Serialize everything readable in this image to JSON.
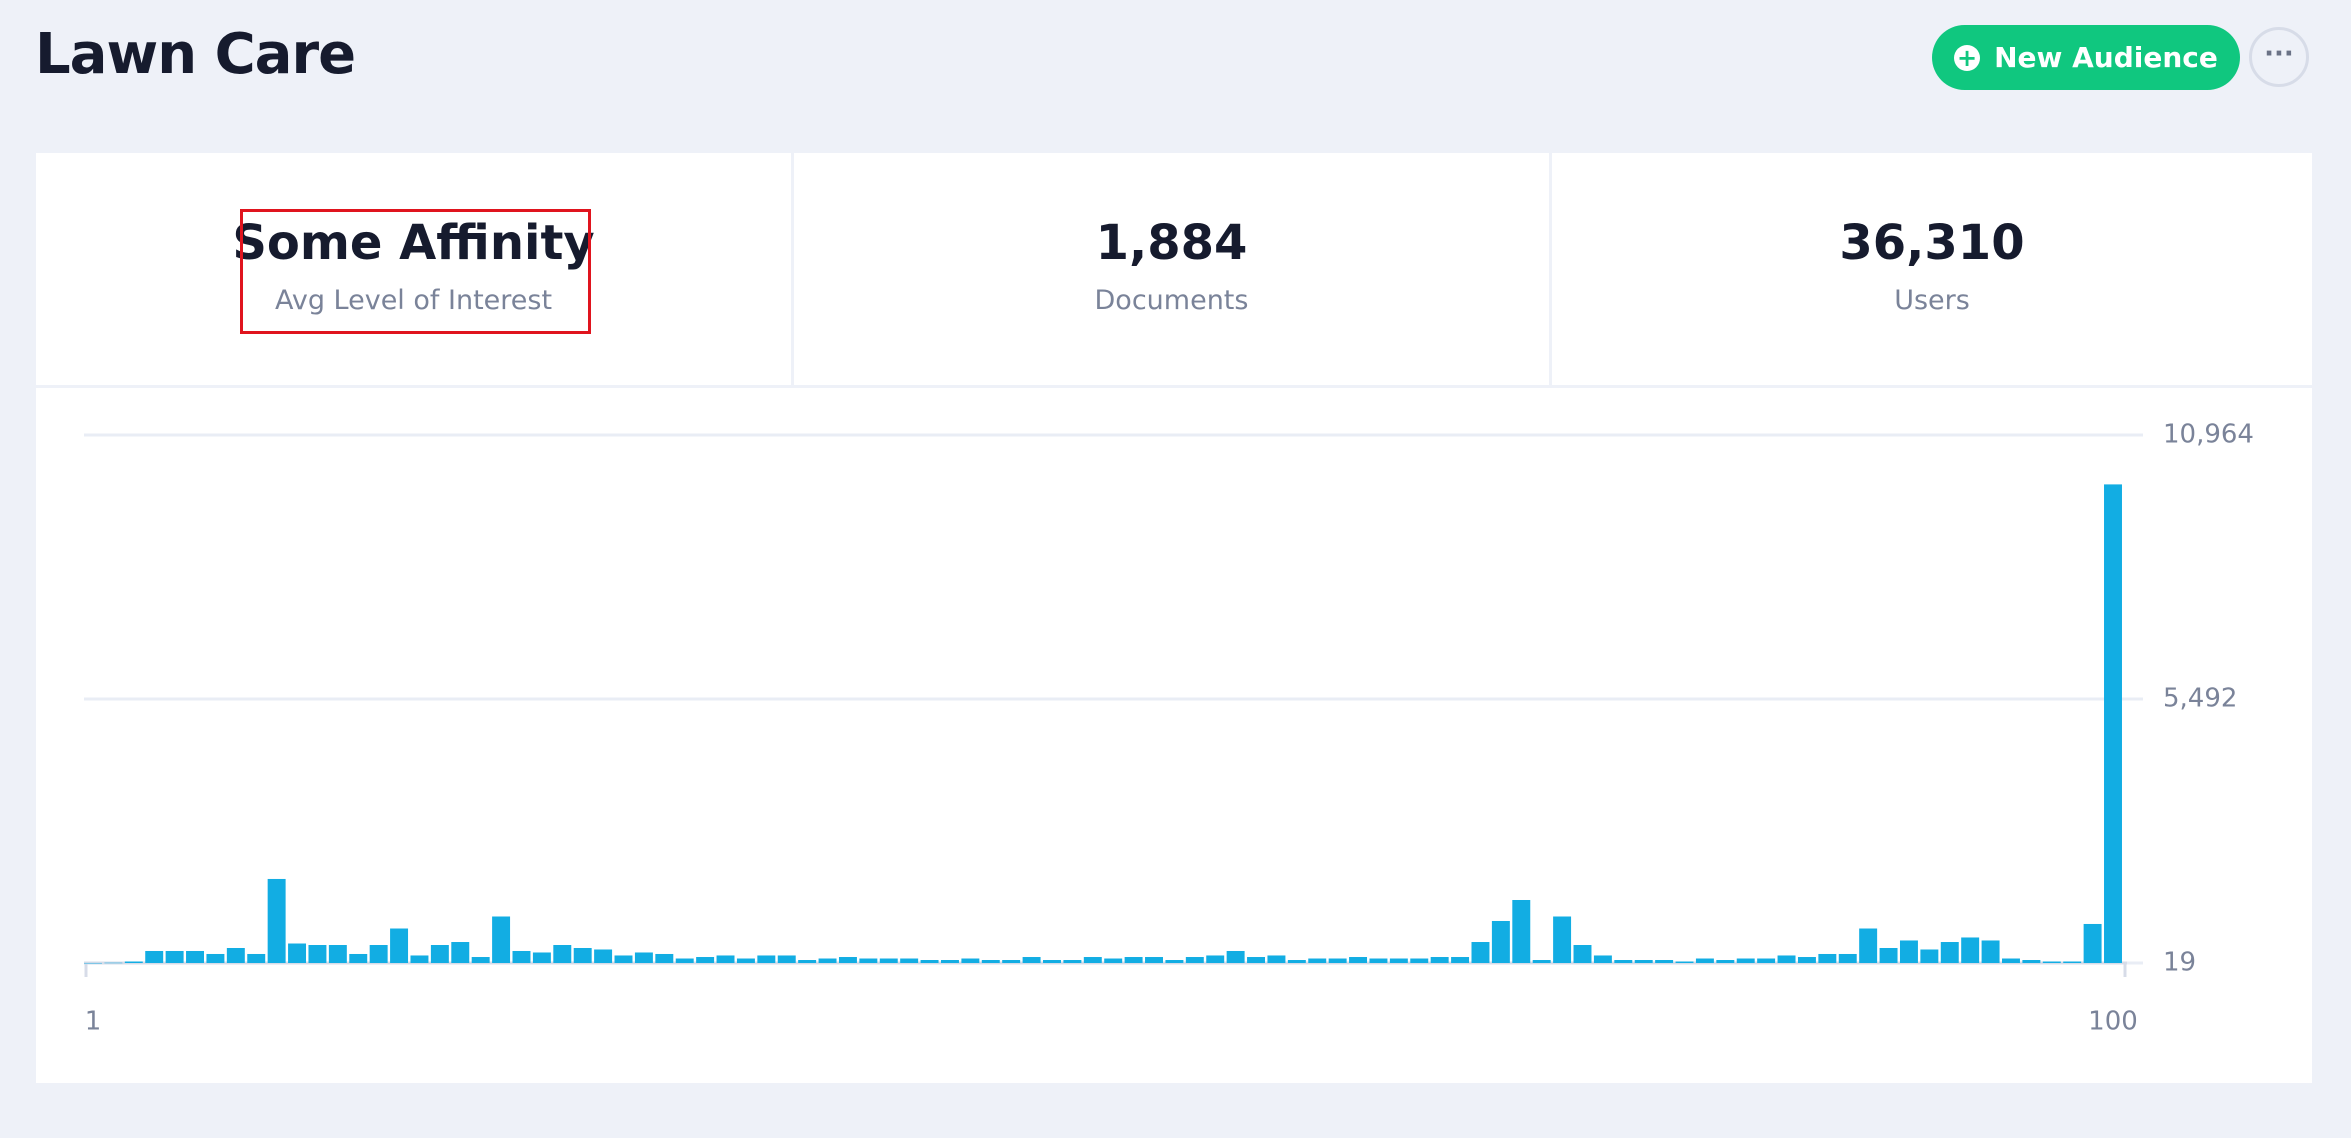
{
  "header": {
    "title": "Lawn Care",
    "button": "New Audience"
  },
  "stats": [
    {
      "value": "Some Affinity",
      "label": "Avg Level of Interest"
    },
    {
      "value": "1,884",
      "label": "Documents"
    },
    {
      "value": "36,310",
      "label": "Users"
    }
  ],
  "chart_data": {
    "type": "bar",
    "color": "#12ade3",
    "grid": true,
    "x": [
      1,
      2,
      3,
      4,
      5,
      6,
      7,
      8,
      9,
      10,
      11,
      12,
      13,
      14,
      15,
      16,
      17,
      18,
      19,
      20,
      21,
      22,
      23,
      24,
      25,
      26,
      27,
      28,
      29,
      30,
      31,
      32,
      33,
      34,
      35,
      36,
      37,
      38,
      39,
      40,
      41,
      42,
      43,
      44,
      45,
      46,
      47,
      48,
      49,
      50,
      51,
      52,
      53,
      54,
      55,
      56,
      57,
      58,
      59,
      60,
      61,
      62,
      63,
      64,
      65,
      66,
      67,
      68,
      69,
      70,
      71,
      72,
      73,
      74,
      75,
      76,
      77,
      78,
      79,
      80,
      81,
      82,
      83,
      84,
      85,
      86,
      87,
      88,
      89,
      90,
      91,
      92,
      93,
      94,
      95,
      96,
      97,
      98,
      99,
      100
    ],
    "values": [
      20,
      25,
      50,
      268,
      268,
      268,
      206,
      330,
      206,
      1761,
      423,
      392,
      392,
      206,
      392,
      734,
      175,
      392,
      454,
      143,
      983,
      268,
      237,
      392,
      330,
      299,
      175,
      237,
      206,
      112,
      143,
      175,
      112,
      175,
      175,
      81,
      112,
      143,
      112,
      112,
      112,
      81,
      81,
      112,
      81,
      81,
      143,
      81,
      81,
      143,
      112,
      143,
      143,
      81,
      143,
      175,
      268,
      143,
      175,
      81,
      112,
      112,
      143,
      112,
      112,
      112,
      143,
      143,
      454,
      890,
      1325,
      81,
      983,
      392,
      175,
      81,
      81,
      81,
      50,
      112,
      81,
      112,
      112,
      175,
      143,
      206,
      206,
      734,
      330,
      486,
      299,
      454,
      548,
      486,
      112,
      81,
      50,
      50,
      828,
      9940
    ],
    "xlim": [
      1,
      100
    ],
    "xticks": [
      1,
      100
    ],
    "ylim": [
      19,
      10964
    ],
    "yticks": [
      19,
      {
        "value": 5492,
        "label": "5,492"
      },
      {
        "value": 10964,
        "label": "10,964"
      }
    ]
  }
}
